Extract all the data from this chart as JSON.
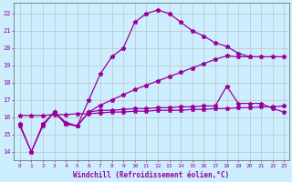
{
  "xlabel": "Windchill (Refroidissement éolien,°C)",
  "bg_color": "#cceeff",
  "line_color": "#990099",
  "grid_color": "#bbbbbb",
  "xlim": [
    -0.5,
    23.4
  ],
  "ylim": [
    13.5,
    22.6
  ],
  "yticks": [
    14,
    15,
    16,
    17,
    18,
    19,
    20,
    21,
    22
  ],
  "xticks": [
    0,
    1,
    2,
    3,
    4,
    5,
    6,
    7,
    8,
    9,
    10,
    11,
    12,
    13,
    14,
    15,
    16,
    17,
    18,
    19,
    20,
    21,
    22,
    23
  ],
  "series1_x": [
    0,
    1,
    2,
    3,
    4,
    5,
    6,
    7,
    8,
    9,
    10,
    11,
    12,
    13,
    14,
    15,
    16,
    17,
    18,
    19,
    20
  ],
  "series1_y": [
    15.5,
    14.0,
    15.5,
    16.3,
    15.6,
    15.5,
    17.0,
    18.5,
    19.5,
    20.0,
    21.5,
    22.0,
    22.2,
    22.0,
    21.5,
    21.0,
    20.7,
    20.3,
    20.1,
    19.7,
    19.5
  ],
  "series2_x": [
    0,
    1,
    2,
    3,
    4,
    5,
    6,
    7,
    8,
    9,
    10,
    11,
    12,
    13,
    14,
    15,
    16,
    17,
    18,
    19,
    20,
    21,
    22,
    23
  ],
  "series2_y": [
    16.1,
    16.1,
    16.1,
    16.15,
    16.15,
    16.2,
    16.2,
    16.25,
    16.3,
    16.3,
    16.35,
    16.35,
    16.4,
    16.4,
    16.4,
    16.45,
    16.45,
    16.5,
    16.5,
    16.55,
    16.55,
    16.6,
    16.6,
    16.65
  ],
  "series3_x": [
    3,
    4,
    5,
    6,
    7,
    8,
    9,
    10,
    11,
    12,
    13,
    14,
    15,
    16,
    17,
    18,
    19,
    20,
    21,
    22,
    23
  ],
  "series3_y": [
    16.3,
    15.7,
    15.5,
    16.3,
    16.7,
    17.0,
    17.3,
    17.6,
    17.85,
    18.1,
    18.35,
    18.6,
    18.85,
    19.1,
    19.35,
    19.55,
    19.5,
    19.5,
    19.5,
    19.5,
    19.5
  ],
  "series4_x": [
    0,
    1,
    2,
    3,
    4,
    5,
    6,
    7,
    8,
    9,
    10,
    11,
    12,
    13,
    14,
    15,
    16,
    17,
    18,
    19,
    20,
    21,
    22,
    23
  ],
  "series4_y": [
    15.6,
    14.0,
    15.6,
    16.3,
    15.6,
    15.5,
    16.3,
    16.4,
    16.4,
    16.45,
    16.5,
    16.5,
    16.55,
    16.55,
    16.6,
    16.6,
    16.65,
    16.65,
    17.8,
    16.8,
    16.8,
    16.8,
    16.5,
    16.3
  ]
}
